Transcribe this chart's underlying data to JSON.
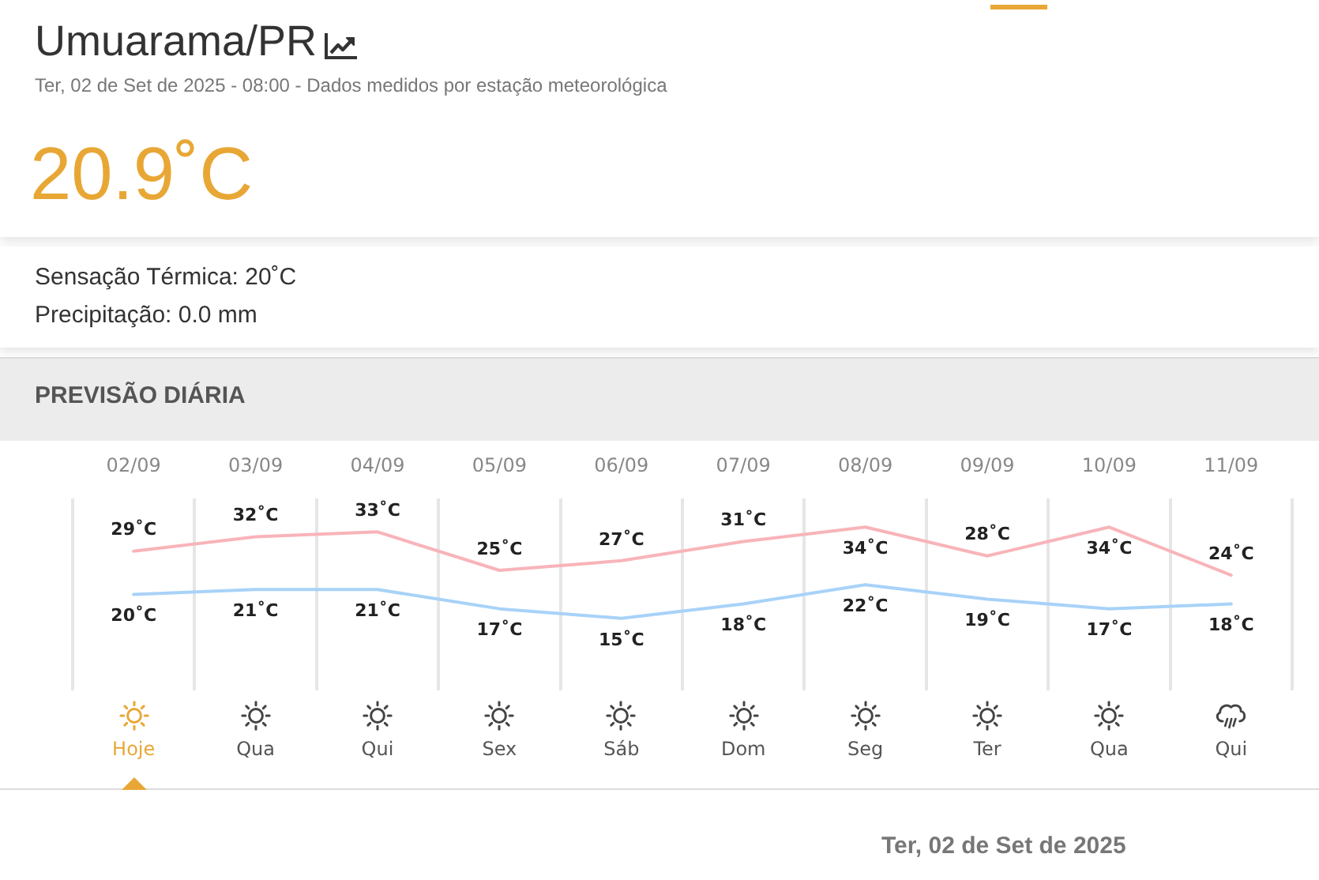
{
  "chart_data": {
    "type": "line",
    "title": "Umuarama/PR",
    "subtitle": "Ter, 02 de Set de 2025 - 08:00 - Dados medidos por estação meteorológica",
    "categories": [
      "02/09",
      "03/09",
      "04/09",
      "05/09",
      "06/09",
      "07/09",
      "08/09",
      "09/09",
      "10/09",
      "11/09"
    ],
    "series": [
      {
        "color": "#f8b4b9",
        "values": [
          29,
          32,
          33,
          25,
          27,
          31,
          34,
          28,
          34,
          24
        ],
        "value_labels": [
          "29˚C",
          "32˚C",
          "33˚C",
          "25˚C",
          "27˚C",
          "31˚C",
          "34˚C",
          "28˚C",
          "34˚C",
          "24˚C"
        ]
      },
      {
        "color": "#a8d2f8",
        "values": [
          20,
          21,
          21,
          17,
          15,
          18,
          22,
          19,
          17,
          18
        ],
        "value_labels": [
          "20˚C",
          "21˚C",
          "21˚C",
          "17˚C",
          "15˚C",
          "18˚C",
          "22˚C",
          "19˚C",
          "17˚C",
          "18˚C"
        ]
      }
    ],
    "ylim": [
      0,
      40
    ],
    "grid": "x",
    "legend": false,
    "marker": "none",
    "line_style": "solid",
    "tick_labels": "x",
    "annotations": [
      "20.9˚C",
      "Sensação Térmica: 20˚C",
      "Precipitação: 0.0 mm",
      "PREVISÃO DIÁRIA",
      {
        "text": "Hoje",
        "x": "02/09"
      },
      {
        "text": "Qua",
        "x": "03/09"
      },
      {
        "text": "Qui",
        "x": "04/09"
      },
      {
        "text": "Sex",
        "x": "05/09"
      },
      {
        "text": "Sáb",
        "x": "06/09"
      },
      {
        "text": "Dom",
        "x": "07/09"
      },
      {
        "text": "Seg",
        "x": "08/09"
      },
      {
        "text": "Ter",
        "x": "09/09"
      },
      {
        "text": "Qua",
        "x": "10/09"
      },
      {
        "text": "Qui",
        "x": "11/09"
      },
      "Ter, 02 de Set de 2025"
    ]
  }
}
